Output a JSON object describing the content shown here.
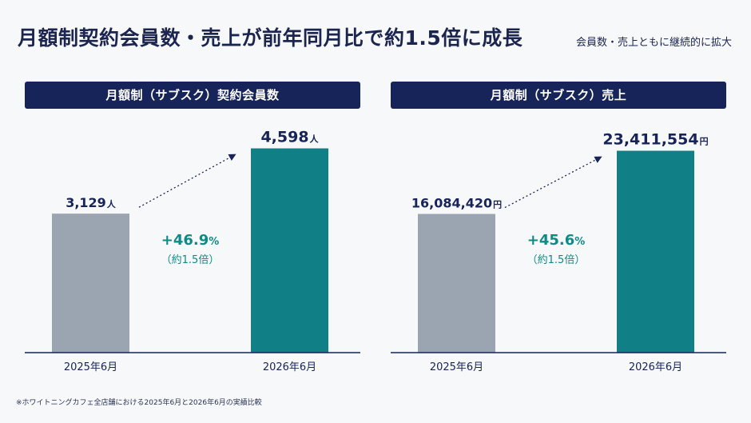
{
  "header": {
    "title": "月額制契約会員数・売上が前年同月比で約1.5倍に成長",
    "subtitle": "会員数・売上ともに継続的に拡大"
  },
  "colors": {
    "navy": "#17245a",
    "bar_previous": "#9ba5b1",
    "bar_current": "#107f86",
    "growth_text": "#0f8b87"
  },
  "chart_data": [
    {
      "type": "bar",
      "title": "月額制（サブスク）契約会員数",
      "categories": [
        "2025年6月",
        "2026年6月"
      ],
      "values": [
        3129,
        4598
      ],
      "value_labels": [
        "3,129",
        "4,598"
      ],
      "unit": "人",
      "growth": "+46.9",
      "growth_unit": "%",
      "growth_note": "（約1.5倍）",
      "ylim": [
        0,
        4950
      ]
    },
    {
      "type": "bar",
      "title": "月額制（サブスク）売上",
      "categories": [
        "2025年6月",
        "2026年6月"
      ],
      "values": [
        16084420,
        23411554
      ],
      "value_labels": [
        "16,084,420",
        "23,411,554"
      ],
      "unit": "円",
      "growth": "+45.6",
      "growth_unit": "%",
      "growth_note": "（約1.5倍）",
      "ylim": [
        0,
        25500000
      ]
    }
  ],
  "footnote": "※ホワイトニングカフェ全店舗における2025年6月と2026年6月の実績比較"
}
